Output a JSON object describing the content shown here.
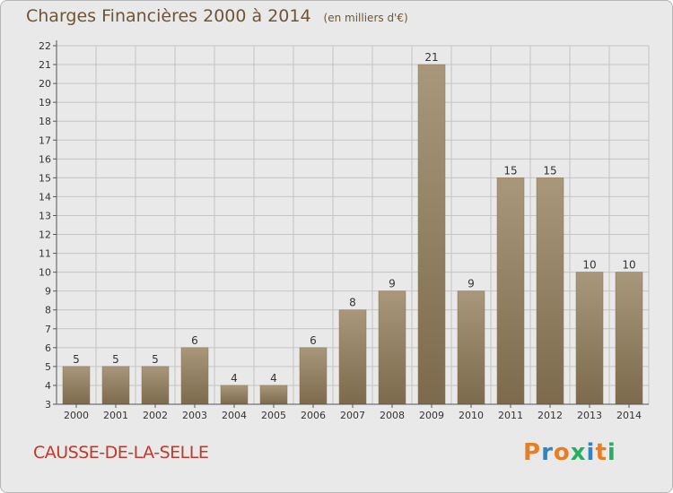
{
  "header": {
    "title": "Charges Financières 2000 à 2014",
    "unit": "(en milliers d'€)"
  },
  "footer": {
    "city": "CAUSSE-DE-LA-SELLE",
    "logo": "Proxiti"
  },
  "colors": {
    "bar_light": "#a8977b",
    "bar_dark": "#7d6a4c",
    "title": "#6e5536",
    "city": "#c0392b",
    "logo_letters": [
      "#e67e22",
      "#2e86c1",
      "#e67e22",
      "#27ae60",
      "#2e86c1",
      "#e67e22",
      "#27ae60"
    ]
  },
  "chart_data": {
    "type": "bar",
    "categories": [
      "2000",
      "2001",
      "2002",
      "2003",
      "2004",
      "2005",
      "2006",
      "2007",
      "2008",
      "2009",
      "2010",
      "2011",
      "2012",
      "2013",
      "2014"
    ],
    "values": [
      5,
      5,
      5,
      6,
      4,
      4,
      6,
      8,
      9,
      21,
      9,
      15,
      15,
      10,
      10
    ],
    "ylim": [
      3,
      22
    ],
    "yticks": [
      3,
      4,
      5,
      6,
      7,
      8,
      9,
      10,
      11,
      12,
      13,
      14,
      15,
      16,
      17,
      18,
      19,
      20,
      21,
      22
    ],
    "grid": true
  }
}
